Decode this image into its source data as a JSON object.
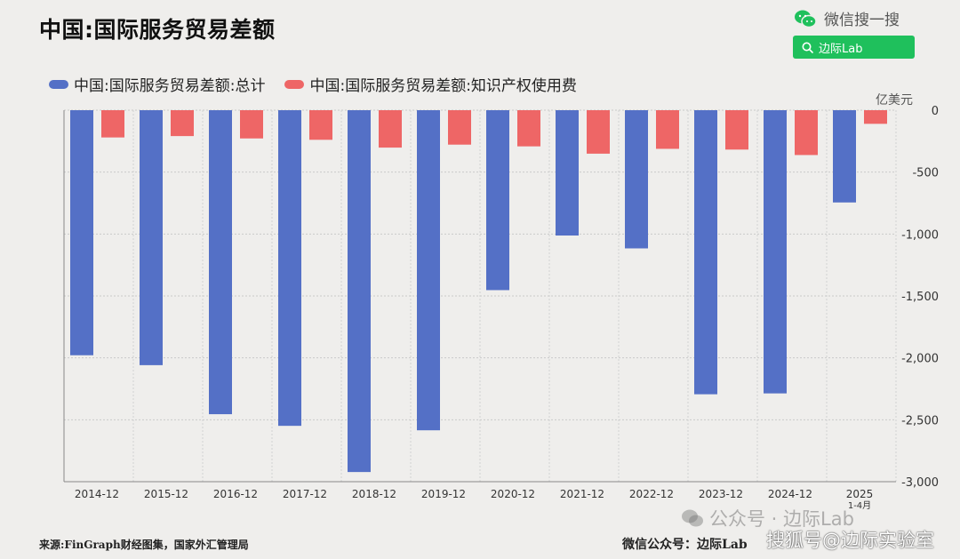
{
  "header": {
    "title": "中国:国际服务贸易差额",
    "wechat_label": "微信搜一搜",
    "search_label": "边际Lab"
  },
  "chart_data": {
    "type": "bar",
    "title": "中国:国际服务贸易差额",
    "unit": "亿美元",
    "categories": [
      "2014-12",
      "2015-12",
      "2016-12",
      "2017-12",
      "2018-12",
      "2019-12",
      "2020-12",
      "2021-12",
      "2022-12",
      "2023-12",
      "2024-12",
      "2025\n1-4月"
    ],
    "series": [
      {
        "name": "中国:国际服务贸易差额:总计",
        "color": "#5470c6",
        "values": [
          -1979,
          -2059,
          -2455,
          -2549,
          -2922,
          -2585,
          -1453,
          -1012,
          -1116,
          -2294,
          -2287,
          -745
        ]
      },
      {
        "name": "中国:国际服务贸易差额:知识产权使用费",
        "color": "#ee6666",
        "values": [
          -220,
          -209,
          -228,
          -239,
          -302,
          -278,
          -292,
          -351,
          -312,
          -318,
          -362,
          -110
        ]
      }
    ],
    "ylim": [
      -3000,
      0
    ],
    "yticks": [
      0,
      -500,
      -1000,
      -1500,
      -2000,
      -2500,
      -3000
    ],
    "ytick_labels": [
      "0",
      "-500",
      "-1,000",
      "-1,500",
      "-2,000",
      "-2,500",
      "-3,000"
    ],
    "grid": true,
    "legend": "top-left"
  },
  "footer": {
    "source": "来源:FinGraph财经图集，国家外汇管理局",
    "credit": "微信公众号：边际Lab"
  },
  "watermarks": {
    "wm1": "公众号 · 边际Lab",
    "wm2": "搜狐号@边际实验室"
  }
}
